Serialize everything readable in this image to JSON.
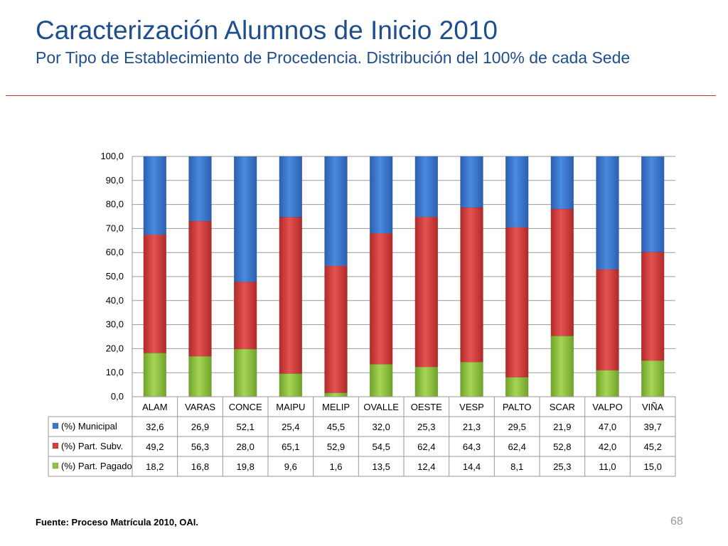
{
  "slide": {
    "title": "Caracterización Alumnos de Inicio 2010",
    "subtitle": "Por Tipo de Establecimiento de Procedencia. Distribución del 100% de cada Sede",
    "source": "Fuente: Proceso Matrícula 2010, OAI.",
    "page_number": "68"
  },
  "chart_data": {
    "type": "bar",
    "stacked": true,
    "categories": [
      "ALAM",
      "VARAS",
      "CONCE",
      "MAIPU",
      "MELIP",
      "OVALLE",
      "OESTE",
      "VESP",
      "PALTO",
      "SCAR",
      "VALPO",
      "VIÑA"
    ],
    "series": [
      {
        "name": "(%) Municipal",
        "color": "#3a78d0",
        "values": [
          32.6,
          26.9,
          52.1,
          25.4,
          45.5,
          32.0,
          25.3,
          21.3,
          29.5,
          21.9,
          47.0,
          39.7
        ],
        "labels": [
          "32,6",
          "26,9",
          "52,1",
          "25,4",
          "45,5",
          "32,0",
          "25,3",
          "21,3",
          "29,5",
          "21,9",
          "47,0",
          "39,7"
        ]
      },
      {
        "name": "(%) Part. Subv.",
        "color": "#d63c3a",
        "values": [
          49.2,
          56.3,
          28.0,
          65.1,
          52.9,
          54.5,
          62.4,
          64.3,
          62.4,
          52.8,
          42.0,
          45.2
        ],
        "labels": [
          "49,2",
          "56,3",
          "28,0",
          "65,1",
          "52,9",
          "54,5",
          "62,4",
          "64,3",
          "62,4",
          "52,8",
          "42,0",
          "45,2"
        ]
      },
      {
        "name": "(%) Part. Pagado",
        "color": "#8fc43e",
        "values": [
          18.2,
          16.8,
          19.8,
          9.6,
          1.6,
          13.5,
          12.4,
          14.4,
          8.1,
          25.3,
          11.0,
          15.0
        ],
        "labels": [
          "18,2",
          "16,8",
          "19,8",
          "9,6",
          "1,6",
          "13,5",
          "12,4",
          "14,4",
          "8,1",
          "25,3",
          "11,0",
          "15,0"
        ]
      }
    ],
    "ylim": [
      0,
      100
    ],
    "yticks": [
      "0,0",
      "10,0",
      "20,0",
      "30,0",
      "40,0",
      "50,0",
      "60,0",
      "70,0",
      "80,0",
      "90,0",
      "100,0"
    ],
    "grid": true,
    "legend": "data-table-left"
  }
}
